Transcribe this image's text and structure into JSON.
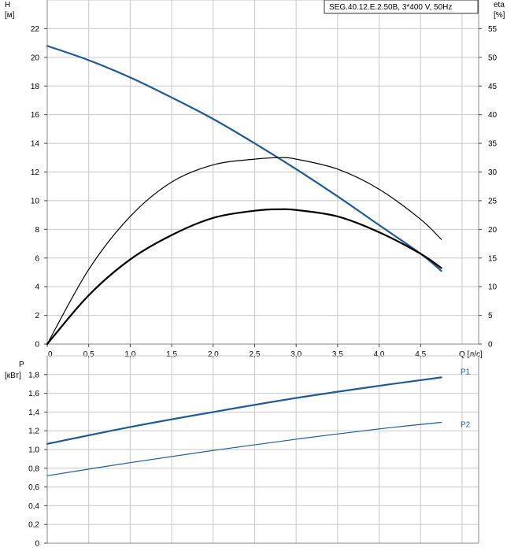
{
  "chart_data": [
    {
      "type": "line",
      "title": "SEG.40.12.E.2.50B, 3*400 V, 50Hz",
      "left_axis": {
        "label_line1": "H",
        "label_line2": "[м]",
        "ylim": [
          0,
          24
        ],
        "ticks": [
          0,
          2,
          4,
          6,
          8,
          10,
          12,
          14,
          16,
          18,
          20,
          22
        ]
      },
      "right_axis": {
        "label_line1": "eta",
        "label_line2": "[%]",
        "ylim": [
          0,
          60
        ],
        "ticks": [
          0,
          5,
          10,
          15,
          20,
          25,
          30,
          35,
          40,
          45,
          50,
          55
        ]
      },
      "x_axis": {
        "label": "Q [л/с]",
        "xlim": [
          0,
          5.2
        ],
        "ticks": [
          "0",
          "0,5",
          "1,0",
          "1,5",
          "2,0",
          "2,5",
          "3,0",
          "3,5",
          "4,0",
          "4,5"
        ]
      },
      "grid": true,
      "series": [
        {
          "color": "#1f5a96",
          "axis": "left",
          "width": 2.2,
          "x": [
            0,
            0.5,
            1.0,
            1.5,
            2.0,
            2.5,
            3.0,
            3.5,
            4.0,
            4.5,
            4.75
          ],
          "y": [
            20.8,
            19.8,
            18.6,
            17.2,
            15.7,
            14.0,
            12.2,
            10.3,
            8.3,
            6.3,
            5.1
          ]
        },
        {
          "color": "#000000",
          "axis": "left",
          "width": 1.2,
          "x": [
            0,
            0.5,
            1.0,
            1.5,
            2.0,
            2.5,
            2.8,
            3.0,
            3.5,
            4.0,
            4.5,
            4.75
          ],
          "y": [
            0,
            5.2,
            8.9,
            11.3,
            12.5,
            12.9,
            13.0,
            12.9,
            12.2,
            10.8,
            8.7,
            7.3
          ]
        },
        {
          "color": "#000000",
          "axis": "left",
          "width": 2.2,
          "x": [
            0,
            0.5,
            1.0,
            1.5,
            2.0,
            2.5,
            2.8,
            3.0,
            3.5,
            4.0,
            4.5,
            4.75
          ],
          "y": [
            0,
            3.4,
            5.9,
            7.6,
            8.8,
            9.3,
            9.4,
            9.35,
            8.9,
            7.8,
            6.3,
            5.3
          ]
        }
      ]
    },
    {
      "type": "line",
      "left_axis": {
        "label_line1": "P",
        "label_line2": "[кВт]",
        "ylim": [
          0,
          2.0
        ],
        "ticks": [
          "0",
          "0,2",
          "0,4",
          "0,6",
          "0,8",
          "1,0",
          "1,2",
          "1,4",
          "1,6",
          "1,8"
        ]
      },
      "x_axis": {
        "xlim": [
          0,
          5.2
        ]
      },
      "grid": true,
      "series": [
        {
          "name": "P1",
          "color": "#1f5a96",
          "width": 2.2,
          "x": [
            0,
            1.0,
            2.0,
            3.0,
            4.0,
            4.75
          ],
          "y": [
            1.06,
            1.24,
            1.4,
            1.55,
            1.68,
            1.77
          ]
        },
        {
          "name": "P2",
          "color": "#1f5a96",
          "width": 1.2,
          "x": [
            0,
            1.0,
            2.0,
            3.0,
            4.0,
            4.75
          ],
          "y": [
            0.72,
            0.86,
            0.99,
            1.11,
            1.22,
            1.29
          ]
        }
      ]
    }
  ]
}
